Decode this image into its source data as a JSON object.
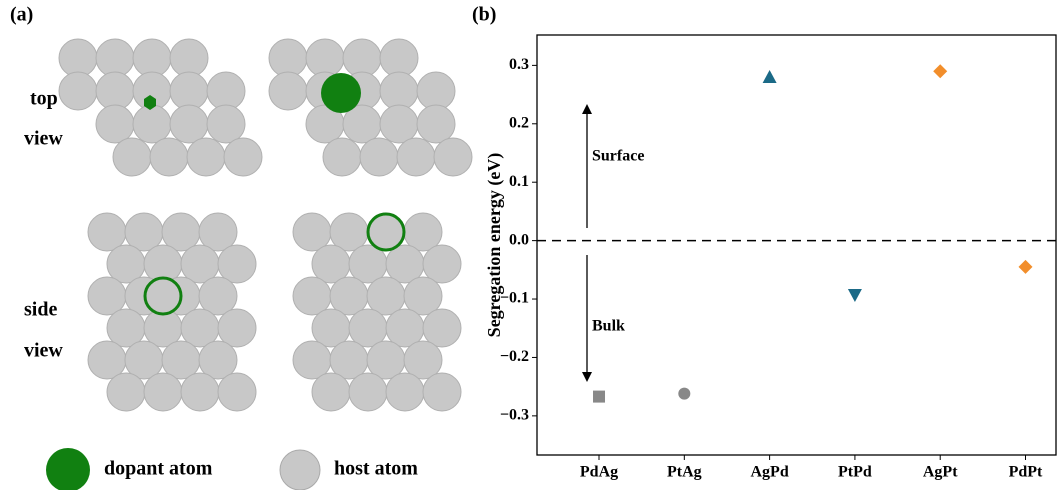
{
  "panel_a": {
    "label": "(a)",
    "top_label": [
      "top",
      "view"
    ],
    "side_label": [
      "side",
      "view"
    ],
    "legend": [
      "dopant atom",
      "host atom"
    ]
  },
  "chart_data": {
    "type": "scatter",
    "panel_label": "(b)",
    "ylabel": "Segregation energy (eV)",
    "categories": [
      "PdAg",
      "PtAg",
      "AgPd",
      "PtPd",
      "AgPt",
      "PdPt"
    ],
    "values": [
      -0.267,
      -0.262,
      0.28,
      -0.093,
      0.29,
      -0.045
    ],
    "colors": [
      "#888888",
      "#888888",
      "#1b6a87",
      "#1b6a87",
      "#f28e2b",
      "#f28e2b"
    ],
    "markers": [
      "square",
      "circle",
      "triangle-up",
      "triangle-down",
      "diamond",
      "diamond"
    ],
    "ylim": [
      -0.367,
      0.352
    ],
    "yticks": [
      {
        "value": -0.3,
        "label": "−0.3"
      },
      {
        "value": -0.2,
        "label": "−0.2"
      },
      {
        "value": -0.1,
        "label": "−0.1"
      },
      {
        "value": 0,
        "label": "0.0"
      },
      0.1,
      0.2,
      0.3
    ],
    "hline": 0,
    "annotations": [
      "Surface",
      "Bulk"
    ]
  }
}
